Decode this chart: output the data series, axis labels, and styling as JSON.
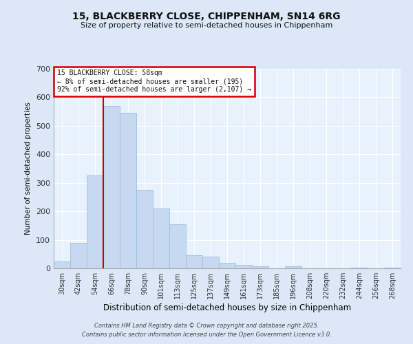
{
  "title": "15, BLACKBERRY CLOSE, CHIPPENHAM, SN14 6RG",
  "subtitle": "Size of property relative to semi-detached houses in Chippenham",
  "xlabel": "Distribution of semi-detached houses by size in Chippenham",
  "ylabel": "Number of semi-detached properties",
  "bar_labels": [
    "30sqm",
    "42sqm",
    "54sqm",
    "66sqm",
    "78sqm",
    "90sqm",
    "101sqm",
    "113sqm",
    "125sqm",
    "137sqm",
    "149sqm",
    "161sqm",
    "173sqm",
    "185sqm",
    "196sqm",
    "208sqm",
    "220sqm",
    "232sqm",
    "244sqm",
    "256sqm",
    "268sqm"
  ],
  "bar_values": [
    25,
    90,
    325,
    570,
    545,
    275,
    210,
    155,
    47,
    40,
    20,
    12,
    7,
    0,
    8,
    0,
    0,
    0,
    2,
    0,
    2
  ],
  "bar_color": "#c6d9f1",
  "bar_edge_color": "#9bbfe0",
  "vline_x_index": 2,
  "vline_color": "#cc0000",
  "annotation_title": "15 BLACKBERRY CLOSE: 58sqm",
  "annotation_line1": "← 8% of semi-detached houses are smaller (195)",
  "annotation_line2": "92% of semi-detached houses are larger (2,107) →",
  "annotation_box_color": "#cc0000",
  "ylim": [
    0,
    700
  ],
  "yticks": [
    0,
    100,
    200,
    300,
    400,
    500,
    600,
    700
  ],
  "bg_color": "#dce8f8",
  "plot_bg_color": "#e8f2fc",
  "footer1": "Contains HM Land Registry data © Crown copyright and database right 2025.",
  "footer2": "Contains public sector information licensed under the Open Government Licence v3.0."
}
